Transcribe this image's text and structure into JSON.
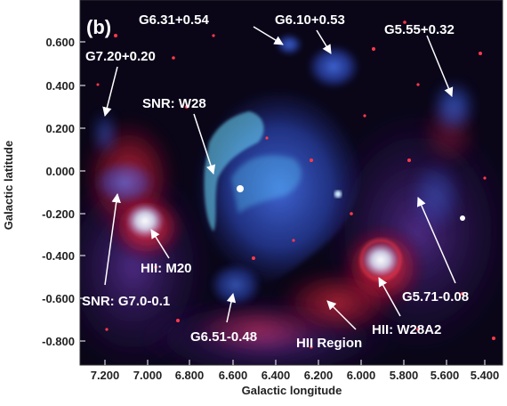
{
  "panel_label": "(b)",
  "axes": {
    "y_title": "Galactic latitude",
    "x_title": "Galactic longitude",
    "y_ticks": [
      "0.600",
      "0.400",
      "0.200",
      "0.000",
      "-0.200",
      "-0.400",
      "-0.600",
      "-0.800"
    ],
    "x_ticks": [
      "7.200",
      "7.000",
      "6.800",
      "6.600",
      "6.400",
      "6.200",
      "6.000",
      "5.800",
      "5.600",
      "5.400"
    ]
  },
  "annotations": [
    "G6.31+0.54",
    "G6.10+0.53",
    "G5.55+0.32",
    "G7.20+0.20",
    "SNR: W28",
    "HII: M20",
    "SNR: G7.0-0.1",
    "G5.71-0.08",
    "G6.51-0.48",
    "HII Region",
    "HII: W28A2"
  ],
  "colors": {
    "background": "#0a0618",
    "radio_blue": "#3d6cf0",
    "snr_cyan": "#6ee0ff",
    "hii_red": "#d8203a",
    "text": "#ffffff"
  }
}
